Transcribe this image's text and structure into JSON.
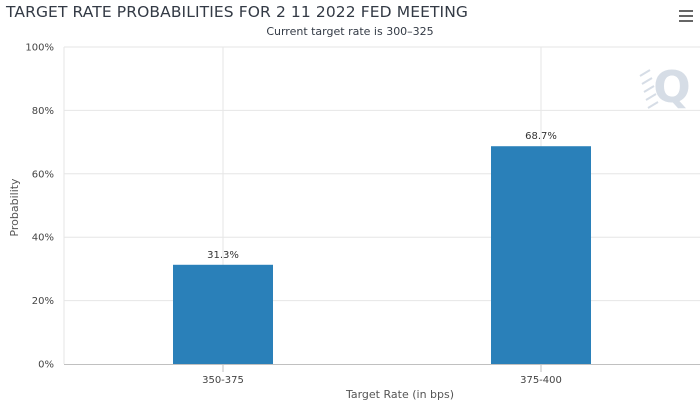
{
  "header": {
    "title": "TARGET RATE PROBABILITIES FOR 2 11 2022 FED MEETING",
    "subtitle": "Current target rate is 300–325"
  },
  "toolbar": {
    "menu_icon": "hamburger-menu-icon"
  },
  "watermark": {
    "icon": "q-logo-icon",
    "text": "Q"
  },
  "colors": {
    "bar": "#2a80b9",
    "grid": "#e6e6e6",
    "axis": "#c0c0c0",
    "watermark": "#d6dde6"
  },
  "chart_data": {
    "type": "bar",
    "categories": [
      "350-375",
      "375-400"
    ],
    "values": [
      31.3,
      68.7
    ],
    "data_labels": [
      "31.3%",
      "68.7%"
    ],
    "title": "TARGET RATE PROBABILITIES FOR 2 11 2022 FED MEETING",
    "subtitle": "Current target rate is 300–325",
    "xlabel": "Target Rate (in bps)",
    "ylabel": "Probability",
    "ylim": [
      0,
      100
    ],
    "yticks": [
      0,
      20,
      40,
      60,
      80,
      100
    ],
    "ytick_labels": [
      "0%",
      "20%",
      "40%",
      "60%",
      "80%",
      "100%"
    ],
    "grid": true,
    "legend": "none"
  }
}
